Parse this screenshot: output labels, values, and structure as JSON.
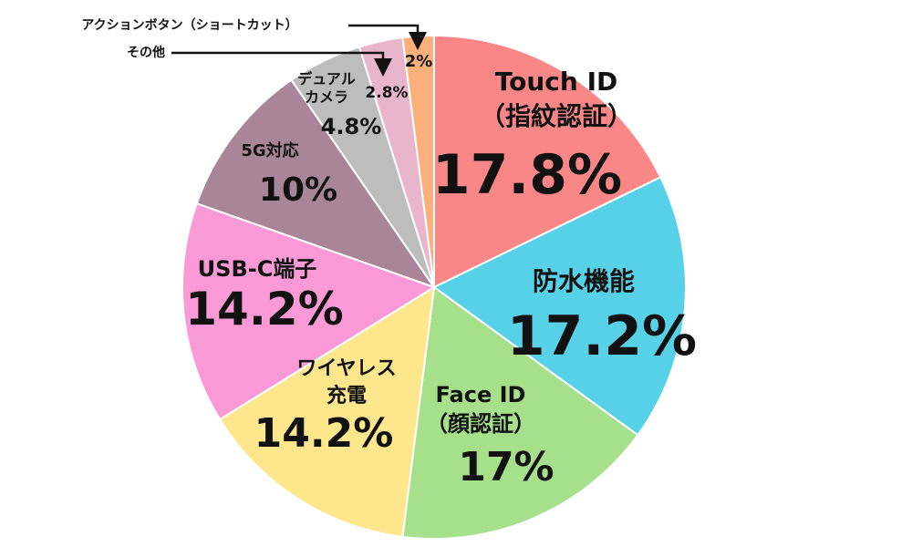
{
  "chart_data": {
    "type": "pie",
    "categories": [
      "Touch ID\n（指紋認証）",
      "防水機能",
      "Face ID\n（顔認証）",
      "ワイヤレス\n充電",
      "USB-C端子",
      "5G対応",
      "デュアル\nカメラ",
      "その他",
      "アクションボタン（ショートカット）"
    ],
    "values": [
      17.8,
      17.2,
      17,
      14.2,
      14.2,
      10,
      4.8,
      2.8,
      2
    ],
    "value_labels": [
      "17.8%",
      "17.2%",
      "17%",
      "14.2%",
      "14.2%",
      "10%",
      "4.8%",
      "2.8%",
      "2%"
    ],
    "colors": [
      "#f98787",
      "#56d1e7",
      "#a6e08a",
      "#fde68c",
      "#f99ad6",
      "#a98599",
      "#bdbdbd",
      "#e8b5cc",
      "#fbb07c"
    ]
  }
}
